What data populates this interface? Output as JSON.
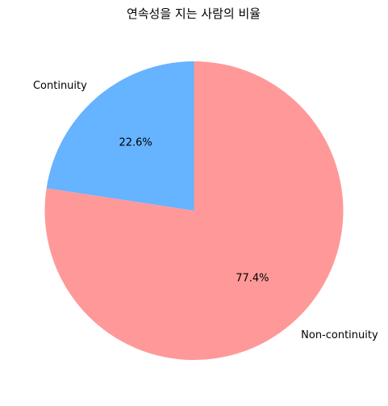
{
  "chart_data": {
    "type": "pie",
    "title": "연속성을 지는 사람의 비율",
    "slices": [
      {
        "label": "Continuity",
        "value": 22.6,
        "pct_label": "22.6%",
        "color": "#66b3ff"
      },
      {
        "label": "Non-continuity",
        "value": 77.4,
        "pct_label": "77.4%",
        "color": "#ff9999"
      }
    ],
    "start_angle_deg": 90,
    "direction": "counterclockwise",
    "legend": "none"
  }
}
